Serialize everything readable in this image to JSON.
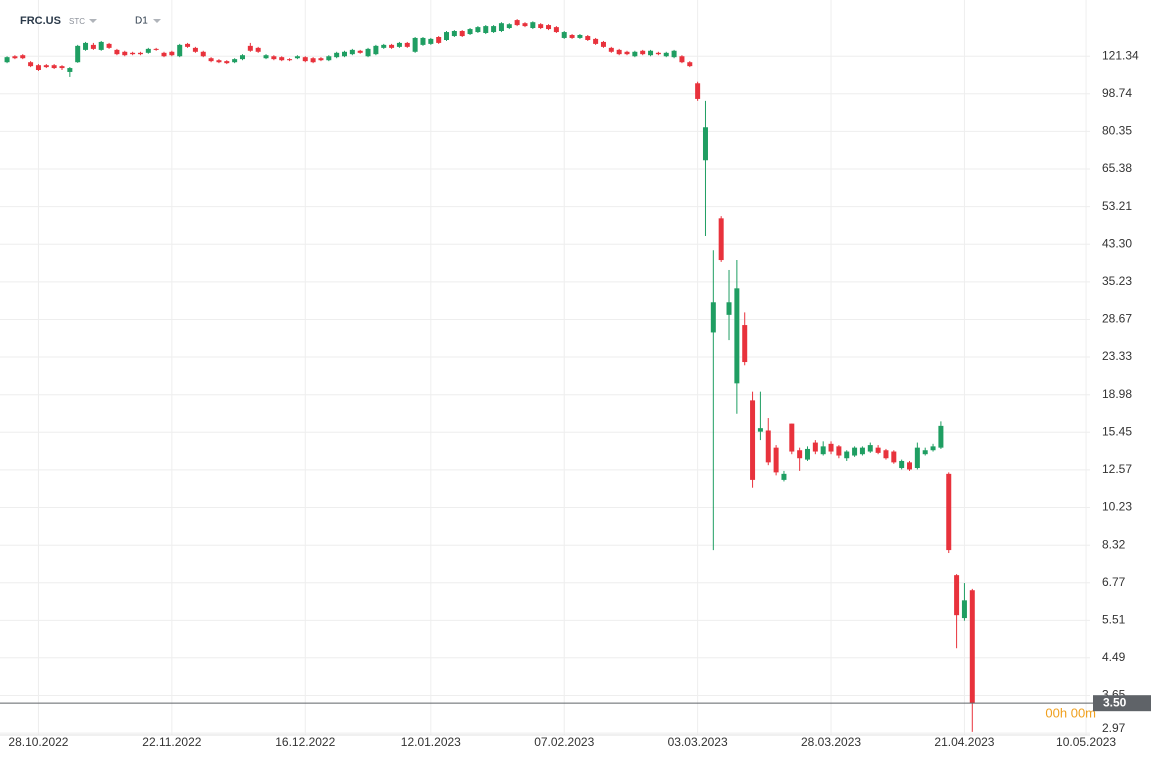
{
  "header": {
    "symbol": "FRC.US",
    "market": "STC",
    "interval": "D1"
  },
  "countdown": "00h 00m",
  "chart_data": {
    "type": "candlestick",
    "y_scale": "log",
    "grid": true,
    "up_color": "#1f9e62",
    "down_color": "#e8323c",
    "last_price": {
      "value": 3.5,
      "label": "3.50"
    },
    "last_price_color": "#5f6368",
    "ylim": [
      2.94,
      165.1
    ],
    "yticks": [
      121.34,
      98.74,
      80.35,
      65.38,
      53.21,
      {
        "value": 43.3,
        "label": "43.30"
      },
      35.23,
      28.67,
      23.33,
      18.98,
      15.45,
      12.57,
      10.23,
      8.32,
      6.77,
      5.51,
      4.49,
      3.65,
      2.97
    ],
    "xlim": [
      -0.9,
      138
    ],
    "xticks": [
      {
        "value": 4,
        "label": "28.10.2022"
      },
      {
        "value": 21,
        "label": "22.11.2022"
      },
      {
        "value": 38,
        "label": "16.12.2022"
      },
      {
        "value": 54,
        "label": "12.01.2023"
      },
      {
        "value": 71,
        "label": "07.02.2023"
      },
      {
        "value": 88,
        "label": "03.03.2023"
      },
      {
        "value": 105,
        "label": "28.03.2023"
      },
      {
        "value": 122,
        "label": "21.04.2023"
      },
      {
        "value": 137.5,
        "label": "10.05.2023"
      }
    ],
    "open": [
      117.4,
      121.3,
      122.0,
      117.4,
      115.5,
      115.5,
      115.5,
      114.9,
      111.3,
      117.4,
      125.6,
      129.1,
      125.6,
      129.8,
      125.6,
      124.3,
      123.6,
      123.6,
      123.6,
      126.3,
      123.6,
      124.3,
      121.3,
      129.8,
      127.0,
      124.3,
      120.0,
      118.7,
      118.1,
      117.4,
      119.4,
      128.4,
      127.0,
      120.0,
      121.3,
      120.7,
      119.4,
      120.0,
      120.7,
      120.0,
      120.0,
      118.7,
      120.7,
      121.3,
      122.7,
      125.0,
      121.3,
      122.7,
      127.0,
      129.1,
      127.7,
      130.5,
      124.3,
      129.1,
      129.8,
      134.8,
      132.6,
      135.5,
      139.3,
      137.0,
      138.5,
      137.8,
      138.5,
      139.3,
      141.6,
      147.9,
      145.4,
      141.6,
      144.6,
      143.9,
      142.3,
      134.1,
      136.3,
      134.1,
      135.5,
      133.4,
      131.2,
      127.0,
      125.6,
      124.3,
      121.3,
      125.0,
      122.0,
      123.6,
      121.3,
      120.7,
      121.3,
      117.4,
      104.6,
      68.6,
      26.7,
      49.9,
      29.4,
      20.2,
      27.8,
      18.4,
      15.5,
      15.6,
      14.2,
      11.9,
      16.2,
      14.0,
      13.3,
      14.6,
      13.7,
      14.5,
      14.3,
      13.4,
      13.6,
      13.7,
      13.9,
      14.2,
      14.0,
      13.9,
      12.7,
      13.1,
      12.7,
      13.7,
      14.0,
      14.2,
      12.3,
      7.06,
      5.58,
      6.5
    ],
    "high": [
      121.3,
      122.0,
      122.7,
      118.1,
      116.2,
      116.2,
      116.2,
      115.5,
      114.3,
      129.1,
      131.2,
      130.5,
      131.9,
      130.5,
      126.3,
      125.0,
      124.3,
      124.3,
      127.0,
      127.0,
      124.3,
      125.0,
      129.8,
      130.5,
      127.7,
      125.0,
      120.7,
      119.4,
      118.7,
      120.0,
      122.7,
      130.5,
      127.7,
      122.7,
      122.0,
      121.3,
      120.0,
      122.0,
      121.3,
      120.7,
      120.7,
      122.0,
      124.3,
      125.0,
      126.3,
      125.6,
      127.0,
      129.1,
      129.8,
      129.8,
      131.2,
      131.2,
      134.8,
      134.8,
      134.1,
      135.5,
      139.3,
      140.0,
      140.0,
      141.6,
      143.1,
      143.9,
      143.9,
      146.2,
      145.4,
      148.7,
      146.2,
      146.9,
      145.4,
      144.6,
      143.1,
      139.3,
      137.0,
      137.0,
      136.3,
      134.1,
      131.9,
      127.7,
      126.3,
      125.0,
      125.0,
      125.6,
      125.6,
      124.3,
      124.3,
      125.6,
      122.0,
      118.1,
      105.5,
      95.0,
      41.9,
      50.5,
      37.6,
      39.7,
      29.8,
      19.3,
      19.3,
      16.7,
      14.4,
      12.5,
      16.2,
      14.2,
      14.3,
      14.8,
      14.7,
      14.7,
      14.4,
      14.0,
      14.3,
      14.3,
      14.6,
      14.4,
      14.1,
      14.0,
      13.3,
      13.2,
      14.6,
      14.2,
      14.5,
      16.4,
      12.4,
      7.1,
      6.76,
      6.55
    ],
    "low": [
      116.8,
      119.4,
      119.4,
      114.3,
      111.9,
      113.7,
      113.1,
      112.5,
      108.3,
      117.0,
      125.0,
      125.6,
      125.0,
      126.3,
      122.0,
      121.3,
      122.0,
      122.0,
      123.0,
      125.0,
      120.7,
      121.3,
      120.7,
      127.0,
      123.6,
      120.7,
      117.4,
      116.8,
      116.2,
      116.8,
      118.7,
      124.3,
      123.6,
      119.4,
      118.7,
      118.1,
      118.1,
      119.4,
      117.4,
      116.8,
      118.1,
      118.1,
      120.0,
      120.7,
      122.0,
      123.0,
      120.7,
      122.0,
      126.3,
      126.3,
      127.0,
      127.0,
      123.6,
      128.4,
      129.1,
      129.8,
      131.9,
      134.8,
      134.8,
      136.3,
      137.8,
      137.0,
      137.8,
      138.5,
      140.8,
      143.1,
      142.3,
      140.8,
      140.8,
      140.0,
      137.8,
      133.4,
      133.4,
      133.4,
      131.9,
      129.1,
      127.0,
      123.6,
      122.0,
      122.0,
      120.7,
      122.0,
      121.3,
      122.0,
      120.7,
      120.0,
      116.8,
      114.3,
      95.0,
      45.3,
      8.1,
      39.3,
      25.6,
      17.1,
      22.3,
      11.4,
      14.8,
      12.9,
      12.2,
      11.8,
      13.7,
      12.5,
      13.2,
      13.7,
      13.6,
      13.7,
      13.4,
      13.2,
      13.5,
      13.6,
      13.8,
      13.7,
      13.3,
      13.0,
      12.6,
      12.5,
      12.6,
      13.6,
      13.9,
      14.1,
      7.97,
      4.73,
      5.5,
      2.99
    ],
    "close": [
      120.7,
      120.0,
      120.0,
      114.9,
      112.5,
      114.3,
      113.7,
      113.7,
      113.7,
      128.4,
      130.5,
      126.3,
      131.2,
      127.0,
      122.7,
      122.0,
      122.7,
      122.7,
      126.3,
      125.6,
      121.3,
      122.0,
      129.1,
      127.7,
      124.3,
      121.3,
      118.1,
      117.4,
      116.8,
      119.4,
      122.0,
      125.0,
      124.3,
      122.0,
      119.4,
      118.7,
      118.7,
      121.3,
      118.1,
      117.4,
      118.7,
      121.3,
      123.6,
      124.3,
      125.6,
      123.6,
      126.3,
      128.4,
      129.1,
      127.0,
      130.5,
      127.7,
      134.1,
      134.1,
      133.4,
      130.5,
      138.5,
      139.3,
      135.5,
      140.8,
      142.3,
      143.1,
      143.1,
      145.4,
      144.6,
      143.9,
      143.1,
      146.2,
      141.6,
      140.8,
      138.5,
      138.5,
      134.1,
      136.3,
      132.6,
      129.8,
      127.7,
      124.3,
      122.7,
      122.7,
      124.3,
      122.7,
      125.0,
      122.7,
      123.6,
      125.0,
      117.4,
      114.9,
      96.0,
      82.2,
      31.5,
      39.7,
      31.5,
      34.0,
      22.7,
      11.9,
      15.8,
      13.1,
      12.4,
      12.3,
      13.9,
      13.4,
      14.1,
      13.9,
      14.3,
      13.9,
      13.6,
      13.9,
      14.2,
      14.2,
      14.4,
      13.8,
      13.4,
      13.1,
      13.2,
      12.6,
      14.2,
      14.0,
      14.3,
      16.0,
      8.1,
      5.67,
      6.15,
      3.5
    ]
  }
}
